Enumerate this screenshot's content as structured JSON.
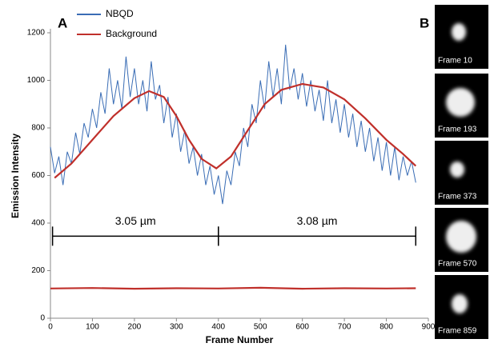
{
  "chart_data": {
    "type": "line",
    "panel_label": "A",
    "xlabel": "Frame Number",
    "ylabel": "Emission Intensity",
    "xlim": [
      0,
      900
    ],
    "xticks": [
      0,
      100,
      200,
      300,
      400,
      500,
      600,
      700,
      800,
      900
    ],
    "ylim": [
      0,
      1200
    ],
    "yticks": [
      0,
      200,
      400,
      600,
      800,
      1000,
      1200
    ],
    "grid": false,
    "legend": "upper left",
    "series": [
      {
        "name": "NBQD",
        "color": "#3a6db5",
        "x": [
          0,
          10,
          20,
          30,
          40,
          50,
          60,
          70,
          80,
          90,
          100,
          110,
          120,
          130,
          140,
          150,
          160,
          170,
          180,
          190,
          200,
          210,
          220,
          230,
          240,
          250,
          260,
          270,
          280,
          290,
          300,
          310,
          320,
          330,
          340,
          350,
          360,
          370,
          380,
          390,
          400,
          410,
          420,
          430,
          440,
          450,
          460,
          470,
          480,
          490,
          500,
          510,
          520,
          530,
          540,
          550,
          560,
          570,
          580,
          590,
          600,
          610,
          620,
          630,
          640,
          650,
          660,
          670,
          680,
          690,
          700,
          710,
          720,
          730,
          740,
          750,
          760,
          770,
          780,
          790,
          800,
          810,
          820,
          830,
          840,
          850,
          860,
          870
        ],
        "values": [
          720,
          610,
          680,
          560,
          700,
          650,
          780,
          690,
          820,
          760,
          880,
          800,
          950,
          860,
          1050,
          900,
          1000,
          880,
          1100,
          930,
          1050,
          900,
          1000,
          870,
          1080,
          920,
          980,
          820,
          930,
          760,
          860,
          700,
          790,
          650,
          720,
          600,
          690,
          560,
          640,
          520,
          600,
          480,
          620,
          560,
          700,
          640,
          800,
          720,
          900,
          820,
          1000,
          880,
          1080,
          930,
          1050,
          900,
          1150,
          960,
          1050,
          920,
          1030,
          890,
          1000,
          870,
          960,
          830,
          1000,
          820,
          920,
          780,
          900,
          760,
          860,
          720,
          830,
          700,
          800,
          660,
          760,
          620,
          740,
          600,
          720,
          580,
          680,
          600,
          660,
          570
        ]
      },
      {
        "color": "#c0302b",
        "x": [
          10,
          50,
          100,
          150,
          200,
          235,
          270,
          300,
          330,
          360,
          395,
          430,
          470,
          510,
          550,
          600,
          650,
          700,
          750,
          800,
          840,
          870
        ],
        "values": [
          590,
          650,
          750,
          850,
          925,
          955,
          930,
          850,
          750,
          670,
          630,
          680,
          790,
          900,
          960,
          985,
          970,
          920,
          840,
          750,
          690,
          640
        ]
      },
      {
        "name": "Background",
        "color": "#c0302b",
        "x": [
          0,
          100,
          200,
          300,
          400,
          500,
          600,
          700,
          800,
          870
        ],
        "values": [
          125,
          127,
          124,
          126,
          125,
          128,
          124,
          126,
          125,
          126
        ]
      }
    ],
    "annotations": [
      {
        "label": "3.05 µm",
        "x": [
          5,
          400
        ],
        "y": 345
      },
      {
        "label": "3.08 µm",
        "x": [
          400,
          870
        ],
        "y": 345
      }
    ]
  },
  "panel_b": {
    "label": "B",
    "frames": [
      "Frame 10",
      "Frame 193",
      "Frame 373",
      "Frame 570",
      "Frame 859"
    ]
  }
}
